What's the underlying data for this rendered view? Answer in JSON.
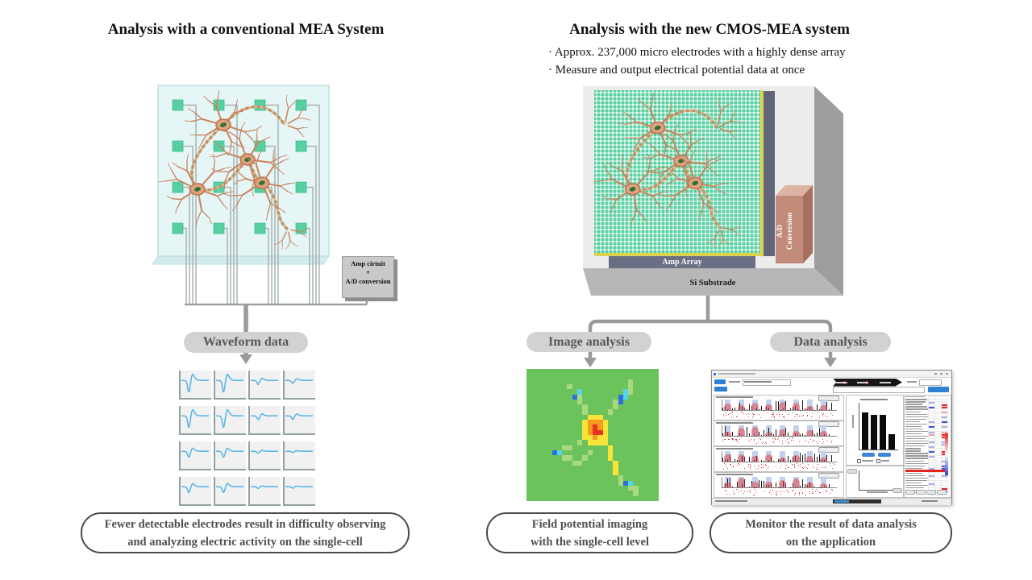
{
  "left": {
    "title": "Analysis with a conventional MEA System",
    "amp_box_lines": [
      "Amp cirtuit",
      "+",
      "A/D conversion"
    ],
    "waveform_pill": "Waveform data",
    "waveform_amplitudes": [
      [
        1,
        1,
        0.35,
        0.25
      ],
      [
        1,
        1,
        0.32,
        0.3
      ],
      [
        0.5,
        0.5,
        0.15,
        0.1
      ],
      [
        0.5,
        0.5,
        0.14,
        0.12
      ]
    ],
    "outcome_lines": [
      "Fewer detectable electrodes result in difficulty observing",
      "and analyzing electric activity on the single-cell"
    ]
  },
  "right": {
    "title": "Analysis with the new CMOS-MEA system",
    "bullets": [
      "· Approx. 237,000 micro electrodes with a highly dense array",
      "· Measure and output electrical potential data at once"
    ],
    "chip": {
      "amp_array_label": "Amp Array",
      "si_substrate_label": "Si Substrade",
      "ad_conversion_lines": [
        "A/D",
        "Conversion"
      ]
    },
    "image_analysis_pill": "Image analysis",
    "data_analysis_pill": "Data analysis",
    "heatmap": {
      "palette": {
        ".": "#6cc35b",
        "l": "#a9d97f",
        "y": "#f8e438",
        "o": "#f59b1e",
        "r": "#e93226",
        "c": "#55d3e8",
        "b": "#2e6fe0"
      },
      "pixels": [
        "..........................",
        "..........................",
        "....................l.....",
        "........l...........l.....",
        "..........c........cl.....",
        ".........bl.......bc......",
        "..........l......lb.......",
        "...........l.....l........",
        "...........l....l.........",
        "............yyy...........",
        "...........yoooy..........",
        "...........yoroy..........",
        "...........yorry..........",
        "...........yyoyy..........",
        "..........l.yyyy..........",
        ".......ll.......y.........",
        ".....bc.....l...y.........",
        ".......ll..l....y.........",
        ".........ll......y........",
        ".................y........",
        ".................y........",
        "..................l.......",
        "..................lbc.....",
        "....................ll....",
        ".....................l....",
        ".........................."
      ]
    },
    "app": {
      "bar_values": [
        0.85,
        0.8,
        0.8,
        0.35
      ],
      "panel_count": 4,
      "bands_per_panel": 8,
      "heat_palette": {
        ".": "#ffffff",
        "b": "#aab6ea",
        "B": "#4557d0",
        "r": "#f2a8a8",
        "R": "#e32424"
      },
      "heat_rows": [
        "...",
        "...",
        "b..",
        "..R",
        "B.R",
        "...",
        "..r",
        "...",
        "..b",
        "...",
        "b.B",
        "...",
        "B.b",
        "...",
        "b.r",
        "r.R",
        "..R",
        "...",
        "b.b",
        "..b",
        "b..",
        "...",
        "B.R",
        "..R",
        "b..",
        "...",
        "..b",
        "...",
        "..B",
        "b.B",
        "FFF",
        "...",
        "b.b",
        "...",
        "...",
        "b..",
        "...",
        "..R",
        "b.B",
        "..."
      ]
    },
    "outcome1_lines": [
      "Field potential imaging",
      "with the single-cell level"
    ],
    "outcome2_lines": [
      "Monitor the result of data analysis",
      "on the application"
    ]
  },
  "colors": {
    "pill_bg": "#d2d2d2",
    "arrow": "#9a9a9a",
    "electrode": "#58cfa1",
    "chip_face": "#e6f5f5",
    "wave": "#5bb8e6",
    "neuron_body": "#dfa27e",
    "neuron_outline": "#bc7450",
    "nucleus": "#2f7036"
  }
}
